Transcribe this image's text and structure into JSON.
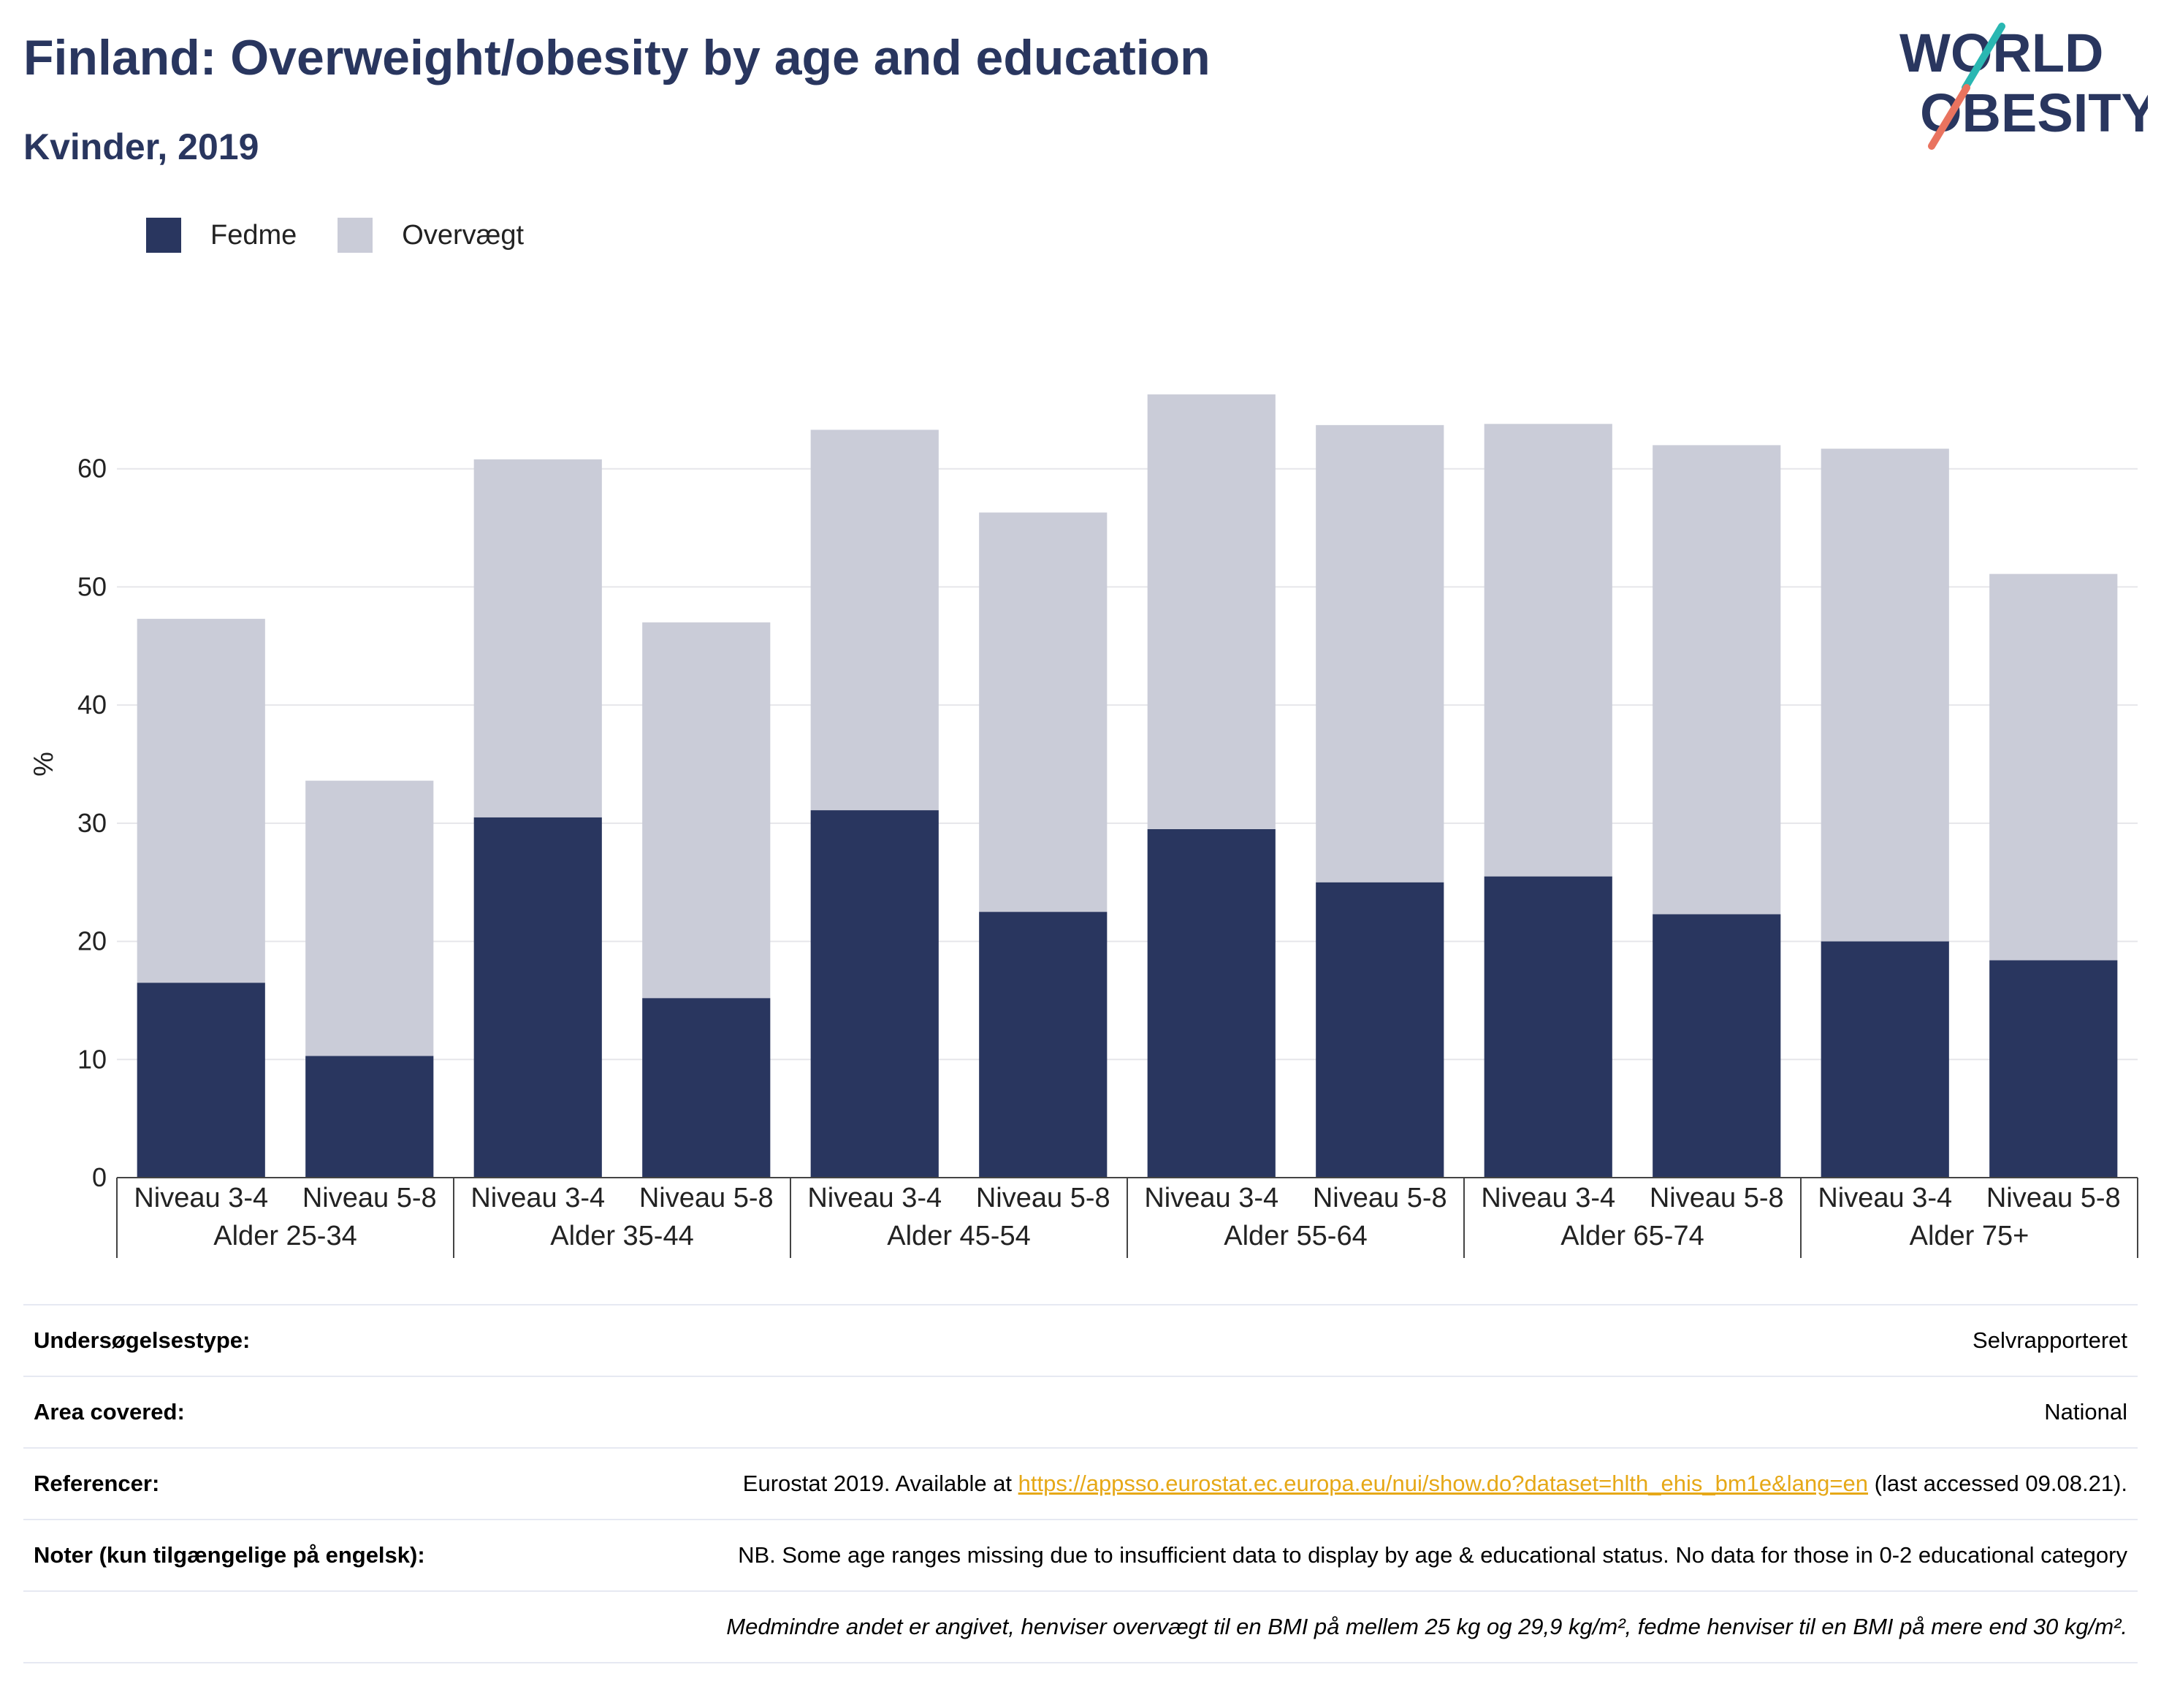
{
  "header": {
    "title": "Finland: Overweight/obesity by age and education",
    "subtitle": "Kvinder, 2019"
  },
  "logo": {
    "line1": "WORLD",
    "line2": "OBESITY"
  },
  "colors": {
    "fedme": "#29365f",
    "overvaegt": "#caccd8",
    "accent_teal": "#2ab7b2",
    "accent_coral": "#e9735f"
  },
  "chart_data": {
    "type": "bar",
    "stacked": true,
    "ylabel": "%",
    "ylim": [
      0,
      70
    ],
    "yticks": [
      0,
      10,
      20,
      30,
      40,
      50,
      60
    ],
    "grid": true,
    "legend_position": "top-left",
    "groups": [
      "Alder 25-34",
      "Alder 35-44",
      "Alder 45-54",
      "Alder 55-64",
      "Alder 65-74",
      "Alder 75+"
    ],
    "categories": [
      "Niveau 3-4",
      "Niveau 5-8",
      "Niveau 3-4",
      "Niveau 5-8",
      "Niveau 3-4",
      "Niveau 5-8",
      "Niveau 3-4",
      "Niveau 5-8",
      "Niveau 3-4",
      "Niveau 5-8",
      "Niveau 3-4",
      "Niveau 5-8"
    ],
    "series": [
      {
        "name": "Fedme",
        "color": "#29365f",
        "values": [
          16.5,
          10.3,
          30.5,
          15.2,
          31.1,
          22.5,
          29.5,
          25.0,
          25.5,
          22.3,
          20.0,
          18.4
        ]
      },
      {
        "name": "Overvægt",
        "color": "#caccd8",
        "values": [
          30.8,
          23.3,
          30.3,
          31.8,
          32.2,
          33.8,
          36.8,
          38.7,
          38.3,
          39.7,
          41.7,
          32.7
        ]
      }
    ]
  },
  "info": {
    "rows": [
      {
        "label": "Undersøgelsestype:",
        "value": "Selvrapporteret"
      },
      {
        "label": "Area covered:",
        "value": "National"
      },
      {
        "label": "Referencer:",
        "value_pre": "Eurostat 2019. Available at ",
        "link": "https://appsso.eurostat.ec.europa.eu/nui/show.do?dataset=hlth_ehis_bm1e&lang=en",
        "value_post": " (last accessed 09.08.21)."
      },
      {
        "label": "Noter (kun tilgængelige på engelsk):",
        "value": "NB. Some age ranges missing due to insufficient data to display by age & educational status. No data for those in 0-2 educational category"
      }
    ],
    "footnote": "Medmindre andet er angivet, henviser overvægt til en BMI på mellem 25 kg og 29,9 kg/m², fedme henviser til en BMI på mere end 30 kg/m²."
  }
}
